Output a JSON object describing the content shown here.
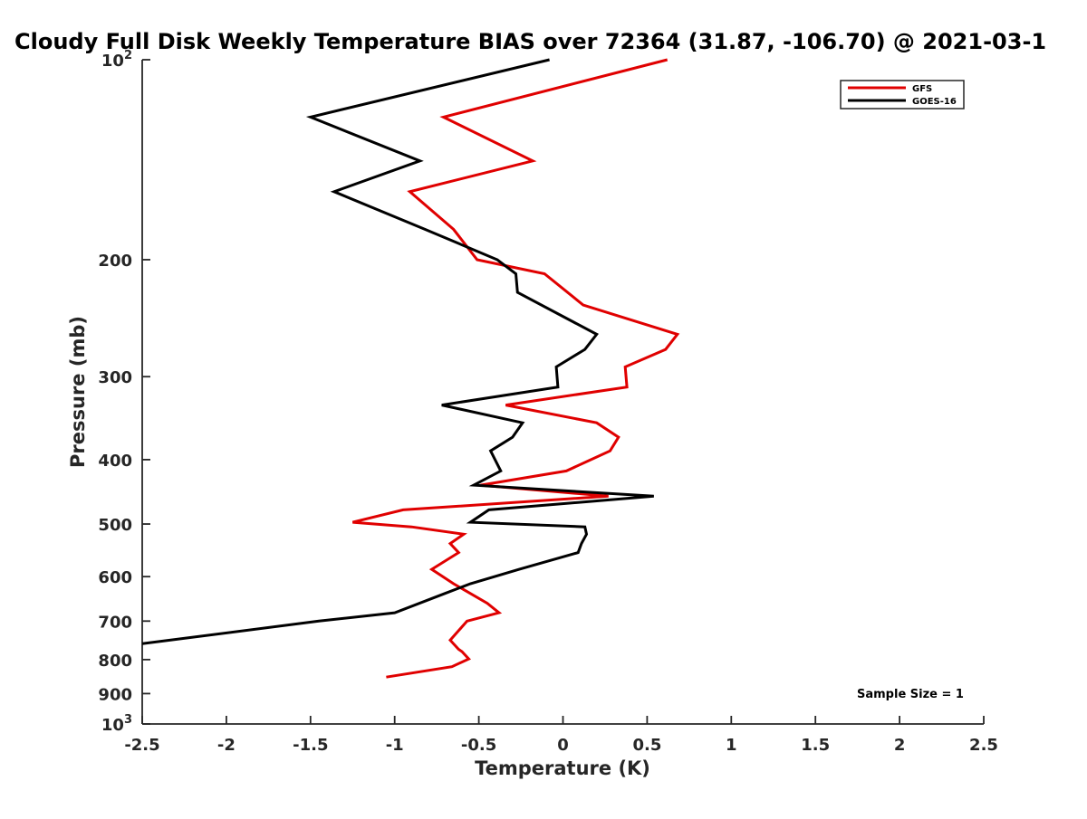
{
  "chart_data": {
    "type": "line",
    "title": "Cloudy Full Disk Weekly Temperature BIAS over 72364 (31.87, -106.70) @ 2021-03-1",
    "xlabel": "Temperature (K)",
    "ylabel": "Pressure (mb)",
    "xlim": [
      -2.5,
      2.5
    ],
    "ylim": [
      100,
      1000
    ],
    "y_scale": "log",
    "y_reversed": true,
    "grid": false,
    "legend_position": "top-right",
    "x_ticks": [
      "-2.5",
      "-2",
      "-1.5",
      "-1",
      "-0.5",
      "0",
      "0.5",
      "1",
      "1.5",
      "2",
      "2.5"
    ],
    "x_tick_values": [
      -2.5,
      -2,
      -1.5,
      -1,
      -0.5,
      0,
      0.5,
      1,
      1.5,
      2,
      2.5
    ],
    "y_ticks": [
      {
        "value": 100,
        "base": "10",
        "exp": "2"
      },
      {
        "value": 200,
        "label": "200"
      },
      {
        "value": 300,
        "label": "300"
      },
      {
        "value": 400,
        "label": "400"
      },
      {
        "value": 500,
        "label": "500"
      },
      {
        "value": 600,
        "label": "600"
      },
      {
        "value": 700,
        "label": "700"
      },
      {
        "value": 800,
        "label": "800"
      },
      {
        "value": 900,
        "label": "900"
      },
      {
        "value": 1000,
        "base": "10",
        "exp": "3"
      }
    ],
    "series": [
      {
        "name": "GFS",
        "color": "#e00000",
        "points": [
          [
            0.62,
            100
          ],
          [
            -0.71,
            122
          ],
          [
            -0.18,
            142
          ],
          [
            -0.91,
            158
          ],
          [
            -0.65,
            180
          ],
          [
            -0.51,
            200
          ],
          [
            -0.11,
            210
          ],
          [
            0.12,
            234
          ],
          [
            0.68,
            259
          ],
          [
            0.61,
            273
          ],
          [
            0.37,
            290
          ],
          [
            0.38,
            311
          ],
          [
            -0.34,
            331
          ],
          [
            0.2,
            352
          ],
          [
            0.33,
            370
          ],
          [
            0.28,
            388
          ],
          [
            0.02,
            416
          ],
          [
            -0.49,
            437
          ],
          [
            0.27,
            454
          ],
          [
            -0.95,
            476
          ],
          [
            -1.25,
            497
          ],
          [
            -0.9,
            505
          ],
          [
            -0.59,
            518
          ],
          [
            -0.67,
            535
          ],
          [
            -0.62,
            552
          ],
          [
            -0.78,
            585
          ],
          [
            -0.65,
            615
          ],
          [
            -0.45,
            658
          ],
          [
            -0.38,
            680
          ],
          [
            -0.57,
            700
          ],
          [
            -0.67,
            748
          ],
          [
            -0.62,
            772
          ],
          [
            -0.6,
            778
          ],
          [
            -0.56,
            798
          ],
          [
            -0.66,
            820
          ],
          [
            -1.05,
            850
          ]
        ]
      },
      {
        "name": "GOES-16",
        "color": "#000000",
        "points": [
          [
            -0.08,
            100
          ],
          [
            -1.5,
            122
          ],
          [
            -0.85,
            142
          ],
          [
            -1.36,
            158
          ],
          [
            -0.82,
            180
          ],
          [
            -0.39,
            200
          ],
          [
            -0.28,
            210
          ],
          [
            -0.27,
            224
          ],
          [
            0.2,
            259
          ],
          [
            0.13,
            273
          ],
          [
            -0.04,
            290
          ],
          [
            -0.03,
            311
          ],
          [
            -0.72,
            331
          ],
          [
            -0.24,
            352
          ],
          [
            -0.3,
            370
          ],
          [
            -0.43,
            388
          ],
          [
            -0.37,
            416
          ],
          [
            -0.53,
            437
          ],
          [
            0.54,
            454
          ],
          [
            -0.44,
            476
          ],
          [
            -0.55,
            497
          ],
          [
            0.13,
            505
          ],
          [
            0.14,
            518
          ],
          [
            0.11,
            535
          ],
          [
            0.09,
            552
          ],
          [
            -0.26,
            585
          ],
          [
            -0.55,
            615
          ],
          [
            -0.7,
            636
          ],
          [
            -1.0,
            680
          ],
          [
            -1.45,
            700
          ],
          [
            -2.5,
            757
          ]
        ]
      }
    ],
    "annotations": [
      {
        "text": "Sample Size = 1"
      }
    ]
  }
}
